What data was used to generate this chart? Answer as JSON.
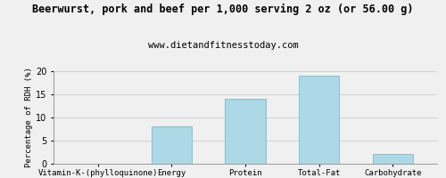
{
  "title": "Beerwurst, pork and beef per 1,000 serving 2 oz (or 56.00 g)",
  "subtitle": "www.dietandfitnesstoday.com",
  "categories": [
    "Vitamin-K-(phylloquinone)",
    "Energy",
    "Protein",
    "Total-Fat",
    "Carbohydrate"
  ],
  "values": [
    0,
    8.1,
    14.0,
    19.0,
    2.1
  ],
  "bar_color": "#add8e6",
  "bar_edgecolor": "#89bdd3",
  "ylabel": "Percentage of RDH (%)",
  "ylim": [
    0,
    20
  ],
  "yticks": [
    0,
    5,
    10,
    15,
    20
  ],
  "background_color": "#f0f0f0",
  "title_fontsize": 8.5,
  "subtitle_fontsize": 7.5,
  "ylabel_fontsize": 6.5,
  "xlabel_fontsize": 6.5,
  "tick_fontsize": 7
}
